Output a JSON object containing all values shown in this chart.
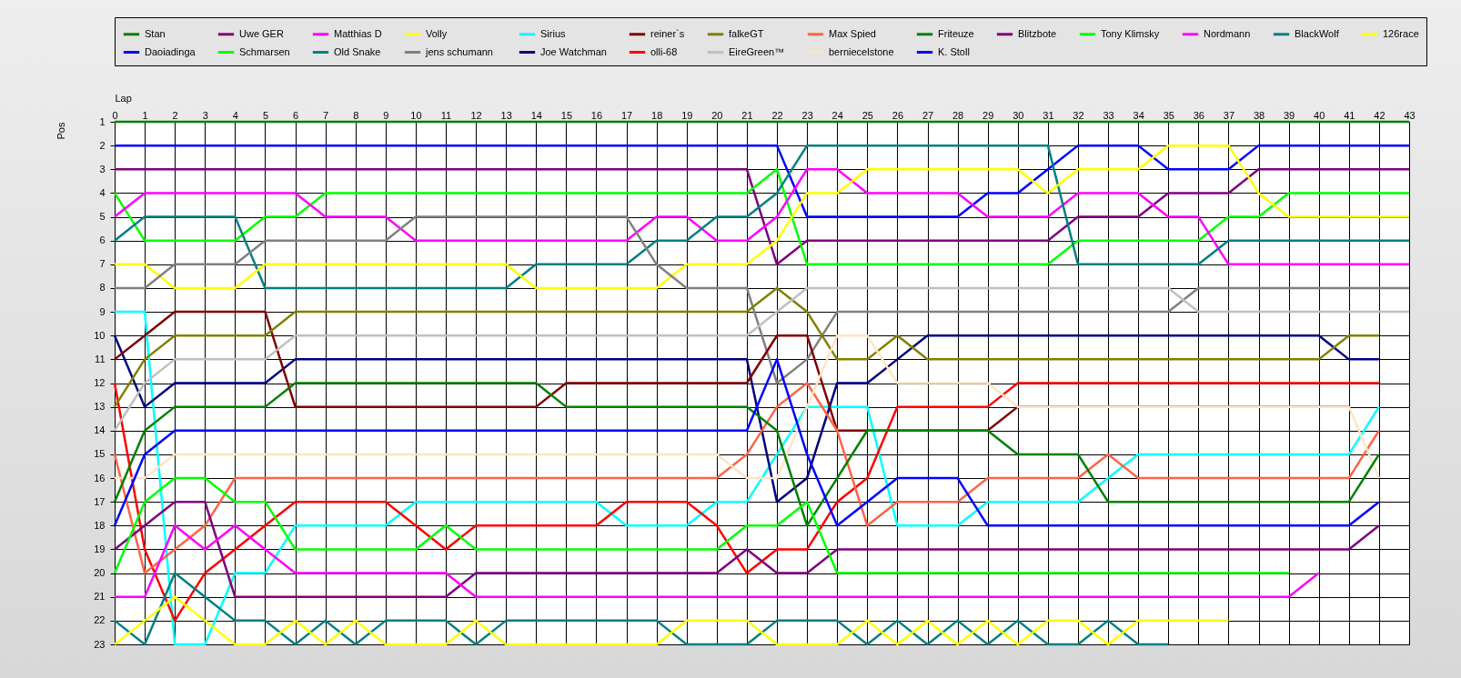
{
  "chart_data": {
    "type": "line",
    "xlabel": "Lap",
    "ylabel": "Pos",
    "x": [
      0,
      1,
      2,
      3,
      4,
      5,
      6,
      7,
      8,
      9,
      10,
      11,
      12,
      13,
      14,
      15,
      16,
      17,
      18,
      19,
      20,
      21,
      22,
      23,
      24,
      25,
      26,
      27,
      28,
      29,
      30,
      31,
      32,
      33,
      34,
      35,
      36,
      37,
      38,
      39,
      40,
      41,
      42,
      43
    ],
    "xlim": [
      0,
      43
    ],
    "xticks": [
      0,
      1,
      2,
      3,
      4,
      5,
      6,
      7,
      8,
      9,
      10,
      11,
      12,
      13,
      14,
      15,
      16,
      17,
      18,
      19,
      20,
      21,
      22,
      23,
      24,
      25,
      26,
      27,
      28,
      29,
      30,
      31,
      32,
      33,
      34,
      35,
      36,
      37,
      38,
      39,
      40,
      41,
      42,
      43
    ],
    "ylim": [
      23,
      1
    ],
    "yticks": [
      1,
      2,
      3,
      4,
      5,
      6,
      7,
      8,
      9,
      10,
      11,
      12,
      13,
      14,
      15,
      16,
      17,
      18,
      19,
      20,
      21,
      22,
      23
    ],
    "grid": true,
    "legend": "top",
    "series": [
      {
        "name": "Stan",
        "color": "#008000",
        "values": [
          1,
          1,
          1,
          1,
          1,
          1,
          1,
          1,
          1,
          1,
          1,
          1,
          1,
          1,
          1,
          1,
          1,
          1,
          1,
          1,
          1,
          1,
          1,
          1,
          1,
          1,
          1,
          1,
          1,
          1,
          1,
          1,
          1,
          1,
          1,
          1,
          1,
          1,
          1,
          1,
          1,
          1,
          1,
          1
        ]
      },
      {
        "name": "Daoiadinga",
        "color": "#0000ff",
        "values": [
          2,
          2,
          2,
          2,
          2,
          2,
          2,
          2,
          2,
          2,
          2,
          2,
          2,
          2,
          2,
          2,
          2,
          2,
          2,
          2,
          2,
          2,
          2,
          5,
          5,
          5,
          5,
          5,
          5,
          4,
          4,
          3,
          2,
          2,
          2,
          3,
          3,
          3,
          2,
          2,
          2,
          2,
          2,
          2
        ]
      },
      {
        "name": "Uwe GER",
        "color": "#800080",
        "values": [
          3,
          3,
          3,
          3,
          3,
          3,
          3,
          3,
          3,
          3,
          3,
          3,
          3,
          3,
          3,
          3,
          3,
          3,
          3,
          3,
          3,
          3,
          7,
          6,
          6,
          6,
          6,
          6,
          6,
          6,
          6,
          6,
          5,
          5,
          5,
          4,
          4,
          4,
          3,
          3,
          3,
          3,
          3,
          3
        ]
      },
      {
        "name": "Schmarsen",
        "color": "#00ff00",
        "values": [
          4,
          6,
          6,
          6,
          6,
          5,
          5,
          4,
          4,
          4,
          4,
          4,
          4,
          4,
          4,
          4,
          4,
          4,
          4,
          4,
          4,
          4,
          3,
          7,
          7,
          7,
          7,
          7,
          7,
          7,
          7,
          7,
          6,
          6,
          6,
          6,
          6,
          5,
          5,
          4,
          4,
          4,
          4,
          4
        ]
      },
      {
        "name": "Matthias D",
        "color": "#ff00ff",
        "values": [
          5,
          4,
          4,
          4,
          4,
          4,
          4,
          5,
          5,
          5,
          6,
          6,
          6,
          6,
          6,
          6,
          6,
          6,
          5,
          5,
          6,
          6,
          5,
          3,
          3,
          4,
          4,
          4,
          4,
          5,
          5,
          5,
          4,
          4,
          4,
          5,
          5,
          7,
          7,
          7,
          7,
          7,
          7,
          7
        ]
      },
      {
        "name": "Old Snake",
        "color": "#008080",
        "values": [
          6,
          5,
          5,
          5,
          5,
          8,
          8,
          8,
          8,
          8,
          8,
          8,
          8,
          8,
          7,
          7,
          7,
          7,
          6,
          6,
          5,
          5,
          4,
          2,
          2,
          2,
          2,
          2,
          2,
          2,
          2,
          2,
          7,
          7,
          7,
          7,
          7,
          6,
          6,
          6,
          6,
          6,
          6,
          6
        ]
      },
      {
        "name": "Volly",
        "color": "#ffff00",
        "values": [
          7,
          7,
          8,
          8,
          8,
          7,
          7,
          7,
          7,
          7,
          7,
          7,
          7,
          7,
          8,
          8,
          8,
          8,
          8,
          7,
          7,
          7,
          6,
          4,
          4,
          3,
          3,
          3,
          3,
          3,
          3,
          4,
          3,
          3,
          3,
          2,
          2,
          2,
          4,
          5,
          5,
          5,
          5,
          5
        ]
      },
      {
        "name": "jens  schumann",
        "color": "#808080",
        "values": [
          8,
          8,
          7,
          7,
          7,
          6,
          6,
          6,
          6,
          6,
          5,
          5,
          5,
          5,
          5,
          5,
          5,
          5,
          7,
          8,
          8,
          8,
          12,
          11,
          9,
          9,
          9,
          9,
          9,
          9,
          9,
          9,
          9,
          9,
          9,
          9,
          8,
          8,
          8,
          8,
          8,
          8,
          8,
          8
        ]
      },
      {
        "name": "Sirius",
        "color": "#00ffff",
        "values": [
          9,
          9,
          23,
          23,
          20,
          20,
          18,
          18,
          18,
          18,
          17,
          17,
          17,
          17,
          17,
          17,
          17,
          18,
          18,
          18,
          17,
          17,
          15,
          13,
          13,
          13,
          18,
          18,
          18,
          17,
          17,
          17,
          17,
          16,
          15,
          15,
          15,
          15,
          15,
          15,
          15,
          15,
          13,
          null
        ]
      },
      {
        "name": "Joe Watchman",
        "color": "#000080",
        "values": [
          10,
          13,
          12,
          12,
          12,
          12,
          11,
          11,
          11,
          11,
          11,
          11,
          11,
          11,
          11,
          11,
          11,
          11,
          11,
          11,
          11,
          11,
          17,
          16,
          12,
          12,
          11,
          10,
          10,
          10,
          10,
          10,
          10,
          10,
          10,
          10,
          10,
          10,
          10,
          10,
          10,
          11,
          11,
          null
        ]
      },
      {
        "name": "reiner`s",
        "color": "#800000",
        "values": [
          11,
          10,
          9,
          9,
          9,
          9,
          13,
          13,
          13,
          13,
          13,
          13,
          13,
          13,
          13,
          12,
          12,
          12,
          12,
          12,
          12,
          12,
          10,
          10,
          14,
          14,
          14,
          14,
          14,
          14,
          13,
          13,
          13,
          13,
          13,
          13,
          13,
          13,
          13,
          13,
          13,
          13,
          null,
          null
        ]
      },
      {
        "name": "olli-68",
        "color": "#ff0000",
        "values": [
          12,
          19,
          22,
          20,
          19,
          18,
          17,
          17,
          17,
          17,
          18,
          19,
          18,
          18,
          18,
          18,
          18,
          17,
          17,
          17,
          18,
          20,
          19,
          19,
          17,
          16,
          13,
          13,
          13,
          13,
          12,
          12,
          12,
          12,
          12,
          12,
          12,
          12,
          12,
          12,
          12,
          12,
          12,
          null
        ]
      },
      {
        "name": "falkeGT",
        "color": "#808000",
        "values": [
          13,
          11,
          10,
          10,
          10,
          10,
          9,
          9,
          9,
          9,
          9,
          9,
          9,
          9,
          9,
          9,
          9,
          9,
          9,
          9,
          9,
          9,
          8,
          9,
          11,
          11,
          10,
          11,
          11,
          11,
          11,
          11,
          11,
          11,
          11,
          11,
          11,
          11,
          11,
          11,
          11,
          10,
          10,
          null
        ]
      },
      {
        "name": "EireGreen™",
        "color": "#c0c0c0",
        "values": [
          14,
          12,
          11,
          11,
          11,
          11,
          10,
          10,
          10,
          10,
          10,
          10,
          10,
          10,
          10,
          10,
          10,
          10,
          10,
          10,
          10,
          10,
          9,
          8,
          8,
          8,
          8,
          8,
          8,
          8,
          8,
          8,
          8,
          8,
          8,
          8,
          9,
          9,
          9,
          9,
          9,
          9,
          9,
          9
        ]
      },
      {
        "name": "Max Spied",
        "color": "#ff6347",
        "values": [
          15,
          20,
          19,
          18,
          16,
          16,
          16,
          16,
          16,
          16,
          16,
          16,
          16,
          16,
          16,
          16,
          16,
          16,
          16,
          16,
          16,
          15,
          13,
          12,
          14,
          18,
          17,
          17,
          17,
          16,
          16,
          16,
          16,
          15,
          16,
          16,
          16,
          16,
          16,
          16,
          16,
          16,
          14,
          null
        ]
      },
      {
        "name": "berniecelstone",
        "color": "#ffe4c4",
        "values": [
          16,
          16,
          15,
          15,
          15,
          15,
          15,
          15,
          15,
          15,
          15,
          15,
          15,
          15,
          15,
          15,
          15,
          15,
          15,
          15,
          15,
          16,
          16,
          13,
          10,
          10,
          12,
          12,
          12,
          12,
          13,
          13,
          13,
          13,
          13,
          13,
          13,
          13,
          13,
          13,
          13,
          13,
          16,
          null
        ]
      },
      {
        "name": "Friteuze",
        "color": "#008000",
        "values": [
          17,
          14,
          13,
          13,
          13,
          13,
          12,
          12,
          12,
          12,
          12,
          12,
          12,
          12,
          12,
          13,
          13,
          13,
          13,
          13,
          13,
          13,
          14,
          18,
          16,
          14,
          14,
          14,
          14,
          14,
          15,
          15,
          15,
          17,
          17,
          17,
          17,
          17,
          17,
          17,
          17,
          17,
          15,
          null
        ]
      },
      {
        "name": "K. Stoll",
        "color": "#0000ff",
        "values": [
          18,
          15,
          14,
          14,
          14,
          14,
          14,
          14,
          14,
          14,
          14,
          14,
          14,
          14,
          14,
          14,
          14,
          14,
          14,
          14,
          14,
          14,
          11,
          15,
          18,
          17,
          16,
          16,
          16,
          18,
          18,
          18,
          18,
          18,
          18,
          18,
          18,
          18,
          18,
          18,
          18,
          18,
          17,
          null
        ]
      },
      {
        "name": "Blitzbote",
        "color": "#800080",
        "values": [
          19,
          18,
          17,
          17,
          21,
          21,
          21,
          21,
          21,
          21,
          21,
          21,
          20,
          20,
          20,
          20,
          20,
          20,
          20,
          20,
          20,
          19,
          20,
          20,
          19,
          19,
          19,
          19,
          19,
          19,
          19,
          19,
          19,
          19,
          19,
          19,
          19,
          19,
          19,
          19,
          19,
          19,
          18,
          null
        ]
      },
      {
        "name": "Tony Klimsky",
        "color": "#00ff00",
        "values": [
          20,
          17,
          16,
          16,
          17,
          17,
          19,
          19,
          19,
          19,
          19,
          18,
          19,
          19,
          19,
          19,
          19,
          19,
          19,
          19,
          19,
          18,
          18,
          17,
          20,
          20,
          20,
          20,
          20,
          20,
          20,
          20,
          20,
          20,
          20,
          20,
          20,
          20,
          20,
          20,
          null,
          null,
          null,
          null
        ]
      },
      {
        "name": "Nordmann",
        "color": "#ff00ff",
        "values": [
          21,
          21,
          18,
          19,
          18,
          19,
          20,
          20,
          20,
          20,
          20,
          20,
          21,
          21,
          21,
          21,
          21,
          21,
          21,
          21,
          21,
          21,
          21,
          21,
          21,
          21,
          21,
          21,
          21,
          21,
          21,
          21,
          21,
          21,
          21,
          21,
          21,
          21,
          21,
          21,
          20,
          null,
          null,
          null
        ]
      },
      {
        "name": "BlackWolf",
        "color": "#008080",
        "values": [
          22,
          23,
          20,
          21,
          22,
          22,
          23,
          22,
          23,
          22,
          22,
          22,
          23,
          22,
          22,
          22,
          22,
          22,
          22,
          23,
          23,
          23,
          22,
          22,
          22,
          23,
          22,
          23,
          22,
          23,
          22,
          23,
          23,
          22,
          23,
          23,
          null,
          null,
          null,
          null,
          null,
          null,
          null,
          null
        ]
      },
      {
        "name": "126race",
        "color": "#ffff00",
        "values": [
          23,
          22,
          21,
          22,
          23,
          23,
          22,
          23,
          22,
          23,
          23,
          23,
          22,
          23,
          23,
          23,
          23,
          23,
          23,
          22,
          22,
          22,
          23,
          23,
          23,
          22,
          23,
          22,
          23,
          22,
          23,
          22,
          22,
          23,
          22,
          22,
          22,
          22,
          null,
          null,
          null,
          null,
          null,
          null
        ]
      }
    ]
  }
}
